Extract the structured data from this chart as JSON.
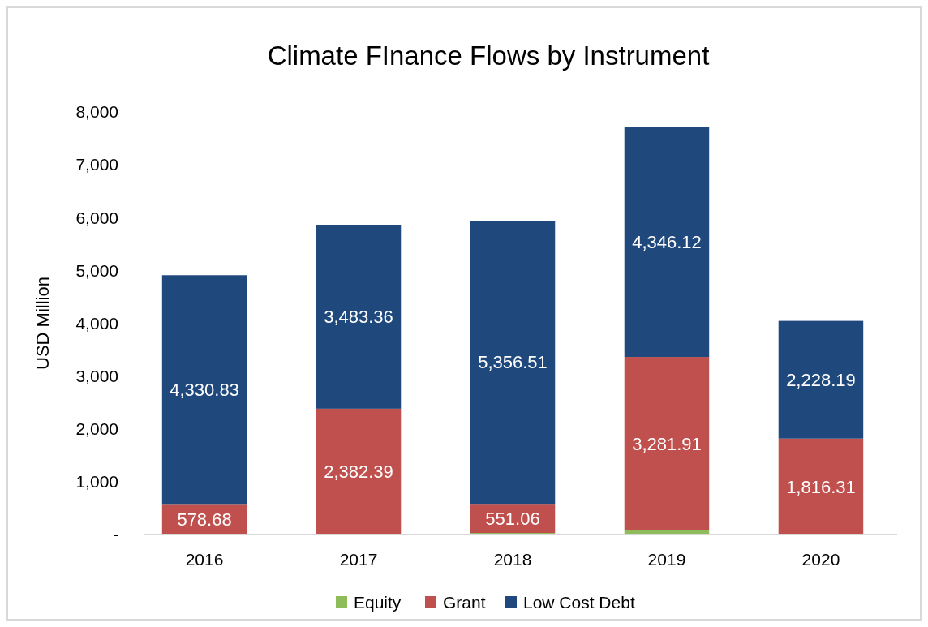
{
  "chart_data": {
    "type": "bar",
    "title": "Climate FInance Flows by Instrument",
    "ylabel": "USD Million",
    "categories": [
      "2016",
      "2017",
      "2018",
      "2019",
      "2020"
    ],
    "stacked": true,
    "ylim": [
      0,
      8000
    ],
    "yticks": [
      {
        "value": 0,
        "label": "-"
      },
      {
        "value": 1000,
        "label": "1,000"
      },
      {
        "value": 2000,
        "label": "2,000"
      },
      {
        "value": 3000,
        "label": "3,000"
      },
      {
        "value": 4000,
        "label": "4,000"
      },
      {
        "value": 5000,
        "label": "5,000"
      },
      {
        "value": 6000,
        "label": "6,000"
      },
      {
        "value": 7000,
        "label": "7,000"
      },
      {
        "value": 8000,
        "label": "8,000"
      }
    ],
    "grid": false,
    "legend": "bottom",
    "series": [
      {
        "name": "Equity",
        "color": "#8fbc5a",
        "values": [
          null,
          null,
          30,
          80,
          null
        ],
        "value_labels": [
          null,
          null,
          null,
          null,
          null
        ]
      },
      {
        "name": "Grant",
        "color": "#c0504d",
        "values": [
          578.68,
          2382.39,
          551.06,
          3281.91,
          1816.31
        ],
        "value_labels": [
          "578.68",
          "2,382.39",
          "551.06",
          "3,281.91",
          "1,816.31"
        ]
      },
      {
        "name": "Low Cost Debt",
        "color": "#1f497d",
        "values": [
          4330.83,
          3483.36,
          5356.51,
          4346.12,
          2228.19
        ],
        "value_labels": [
          "4,330.83",
          "3,483.36",
          "5,356.51",
          "4,346.12",
          "2,228.19"
        ]
      }
    ]
  }
}
